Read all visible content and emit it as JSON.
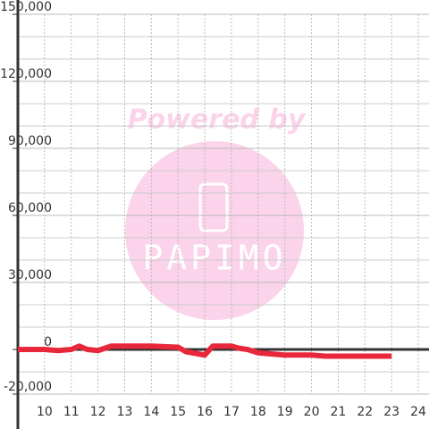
{
  "chart_data": {
    "type": "line",
    "annotations": [
      "Powered by",
      "PAPIMO"
    ],
    "x": [
      9,
      10,
      10.5,
      11,
      11.3,
      11.6,
      12,
      12.5,
      13,
      14,
      15,
      15.3,
      16,
      16.3,
      17,
      17.3,
      17.6,
      18,
      18.5,
      19,
      20,
      20.5,
      21,
      22,
      23
    ],
    "series": [
      {
        "color": "#e8283a",
        "values": [
          0,
          0,
          -500,
          0,
          1500,
          0,
          -500,
          1500,
          1500,
          1500,
          1000,
          -1000,
          -2500,
          1500,
          1500,
          500,
          0,
          -1500,
          -2000,
          -2500,
          -2500,
          -3000,
          -3000,
          -3000,
          -3000
        ]
      }
    ],
    "xlim": [
      9,
      24.4
    ],
    "xticks": [
      10,
      11,
      12,
      13,
      14,
      15,
      16,
      17,
      18,
      19,
      20,
      21,
      22,
      23,
      24
    ],
    "ylim": [
      -20000,
      150000
    ],
    "yticks": [
      {
        "value": -20000,
        "label": "-20,000"
      },
      0,
      {
        "value": 30000,
        "label": "30,000"
      },
      {
        "value": 60000,
        "label": "60,000"
      },
      {
        "value": 90000,
        "label": "90,000"
      },
      {
        "value": 120000,
        "label": "120,000"
      },
      {
        "value": 150000,
        "label": "150,000"
      }
    ],
    "y_minor_ticks": [
      -10000,
      10000,
      20000,
      40000,
      50000,
      70000,
      80000,
      100000,
      110000,
      130000,
      140000
    ],
    "grid": true
  }
}
